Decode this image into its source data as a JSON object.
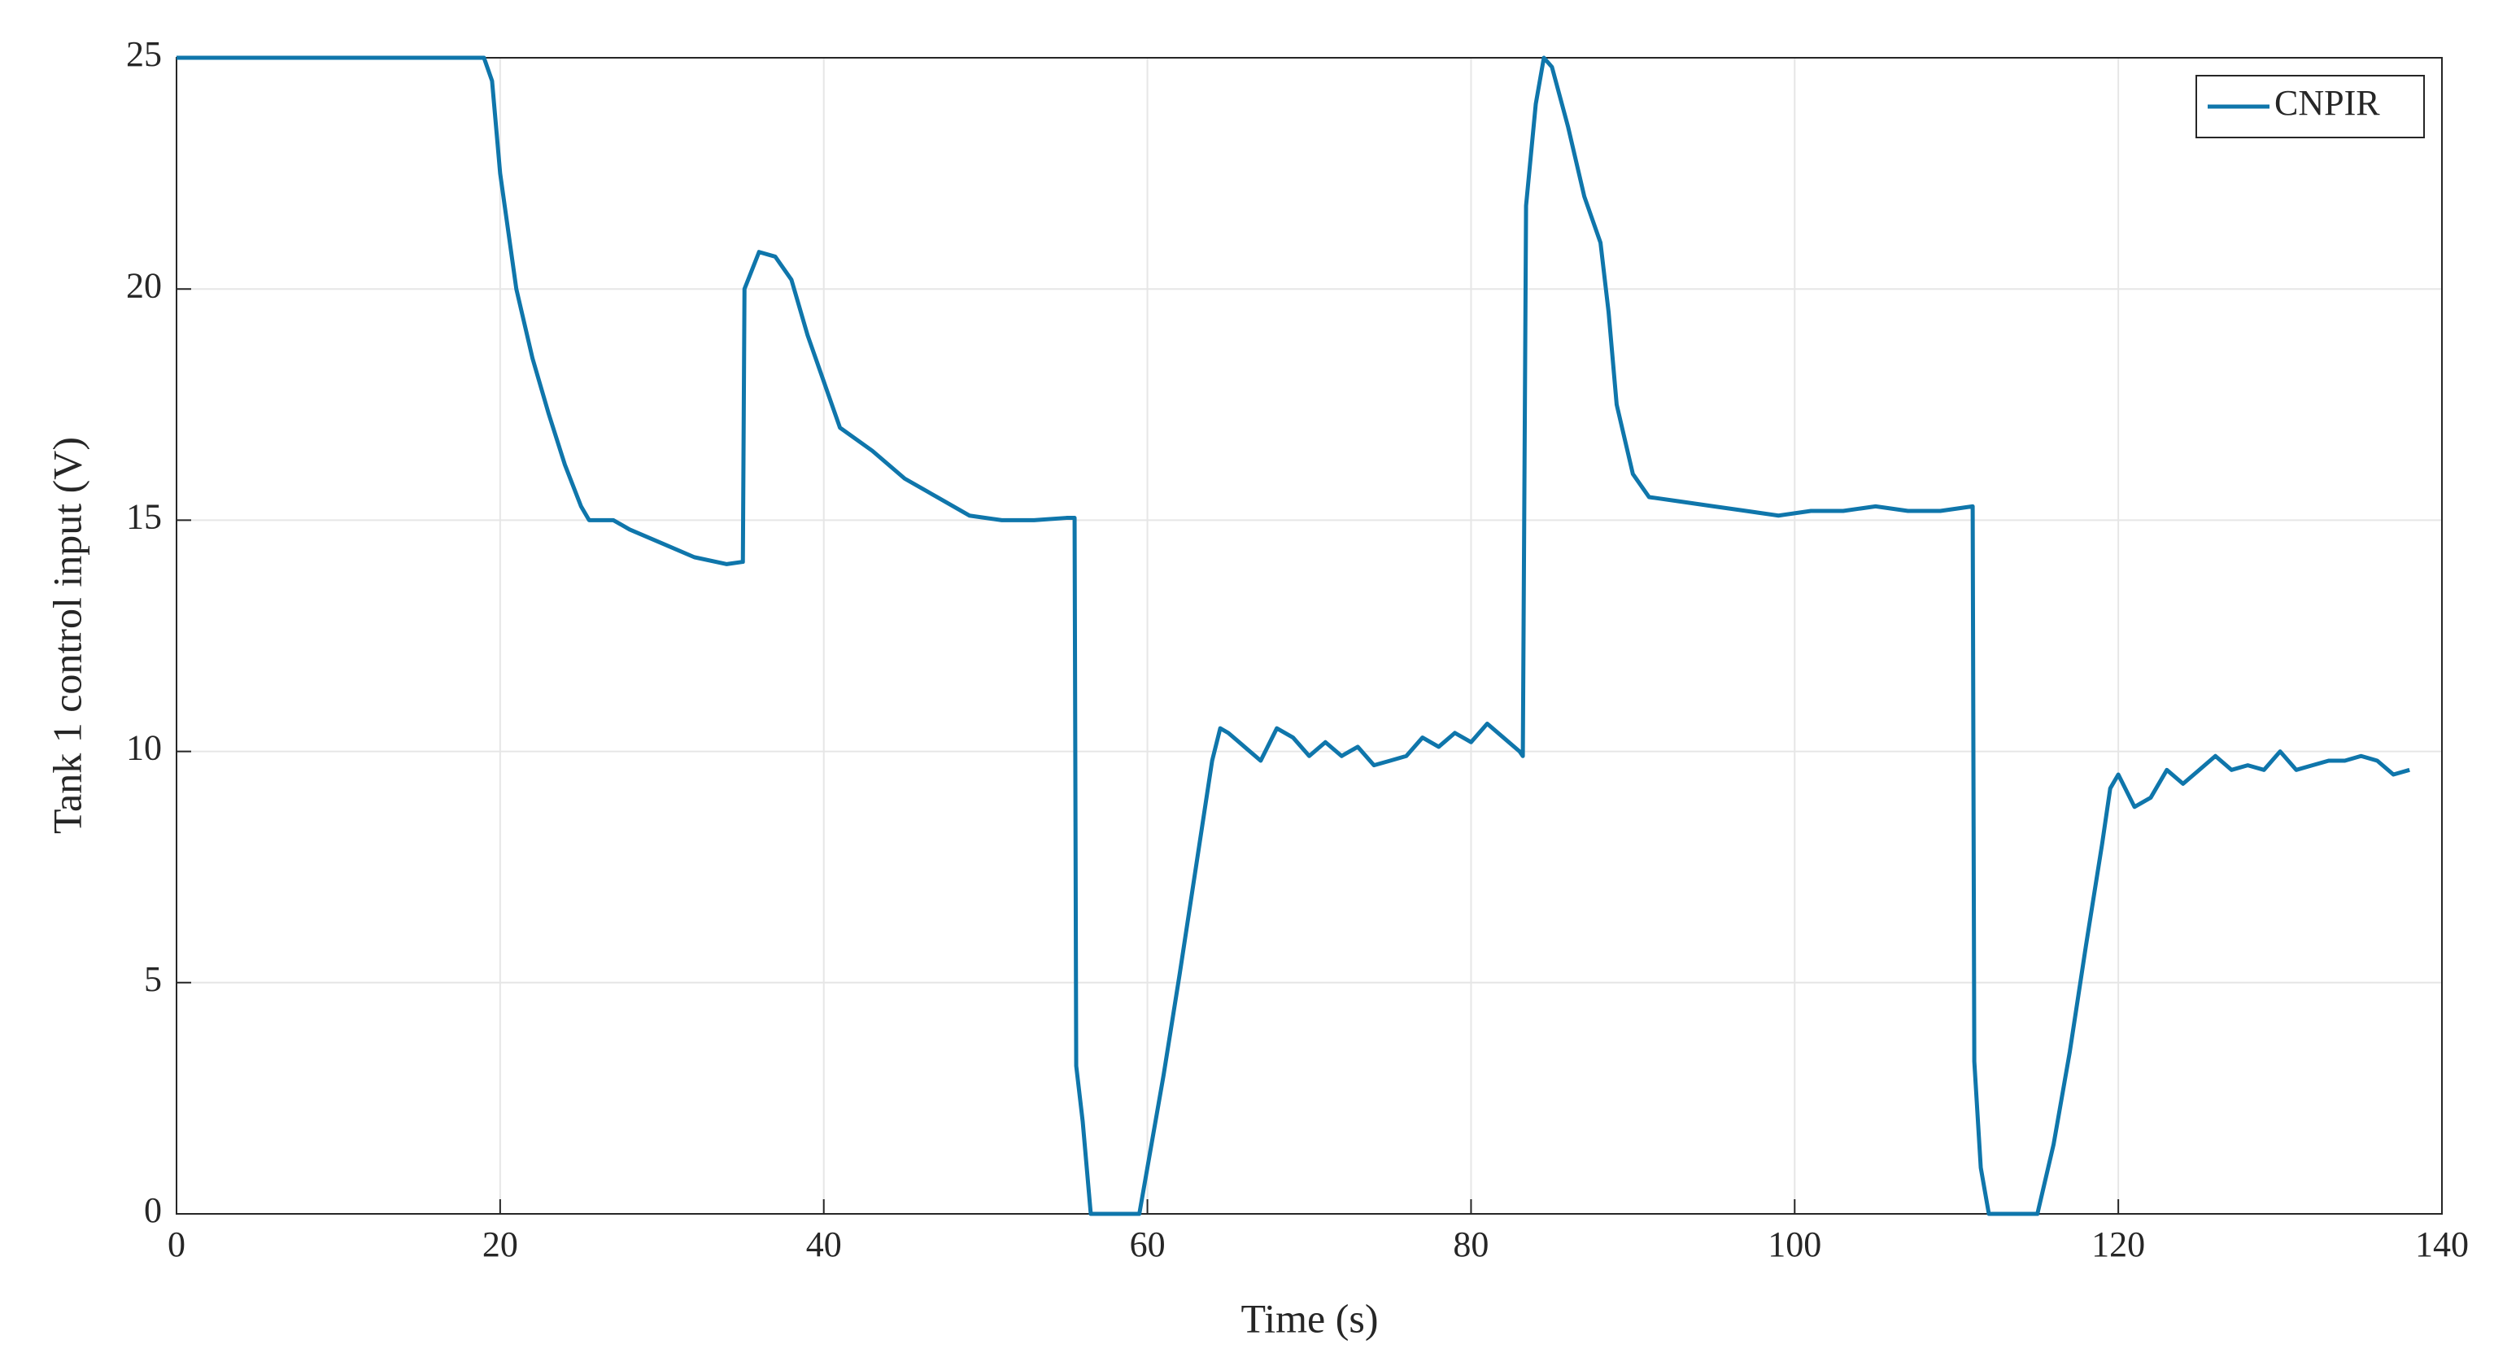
{
  "chart_data": {
    "type": "line",
    "xlabel": "Time (s)",
    "ylabel": "Tank 1 control input (V)",
    "x": [
      0,
      19,
      19.5,
      20,
      21,
      22,
      23,
      24,
      25,
      25.5,
      27,
      28,
      30,
      32,
      34,
      35,
      35.1,
      36,
      37,
      38,
      39,
      40,
      41,
      43,
      45,
      47,
      49,
      51,
      53,
      55,
      55.5,
      55.6,
      56,
      56.5,
      59.5,
      60,
      61,
      62,
      63,
      64,
      64.5,
      65,
      66,
      67,
      68,
      69,
      70,
      71,
      72,
      73,
      74,
      75,
      76,
      77,
      78,
      79,
      80,
      81,
      82,
      83,
      83.2,
      83.4,
      84,
      84.5,
      85,
      86,
      87,
      88,
      88.5,
      89,
      90,
      91,
      93,
      95,
      97,
      99,
      101,
      103,
      105,
      107,
      109,
      111,
      111.1,
      111.5,
      112,
      115,
      116,
      117,
      118,
      119,
      119.5,
      120,
      121,
      122,
      123,
      124,
      125,
      126,
      127,
      128,
      129,
      130,
      131,
      132,
      133,
      134,
      135,
      136,
      137,
      138
    ],
    "series": [
      {
        "name": "CNPIR",
        "color": "#0f76ab",
        "values": [
          25,
          25,
          24.5,
          22.5,
          20,
          18.5,
          17.3,
          16.2,
          15.3,
          15,
          15,
          14.8,
          14.5,
          14.2,
          14.05,
          14.1,
          20,
          20.8,
          20.7,
          20.2,
          19,
          18,
          17,
          16.5,
          15.9,
          15.5,
          15.1,
          15,
          15,
          15.05,
          15.05,
          3.2,
          2,
          0,
          0,
          1,
          3,
          5.2,
          7.5,
          9.8,
          10.5,
          10.4,
          10.1,
          9.8,
          10.5,
          10.3,
          9.9,
          10.2,
          9.9,
          10.1,
          9.7,
          9.8,
          9.9,
          10.3,
          10.1,
          10.4,
          10.2,
          10.6,
          10.3,
          10,
          9.9,
          21.8,
          24,
          25,
          24.8,
          23.5,
          22,
          21,
          19.5,
          17.5,
          16,
          15.5,
          15.4,
          15.3,
          15.2,
          15.1,
          15.2,
          15.2,
          15.3,
          15.2,
          15.2,
          15.3,
          3.3,
          1,
          0,
          0,
          1.5,
          3.5,
          5.8,
          8,
          9.2,
          9.5,
          8.8,
          9,
          9.6,
          9.3,
          9.6,
          9.9,
          9.6,
          9.7,
          9.6,
          10,
          9.6,
          9.7,
          9.8,
          9.8,
          9.9,
          9.8,
          9.5,
          9.6
        ]
      }
    ],
    "xlim": [
      0,
      140
    ],
    "xticks": [
      0,
      20,
      40,
      60,
      80,
      100,
      120,
      140
    ],
    "ylim": [
      0,
      25
    ],
    "yticks": [
      0,
      5,
      10,
      15,
      20,
      25
    ],
    "grid": true,
    "legend": "northeast"
  }
}
